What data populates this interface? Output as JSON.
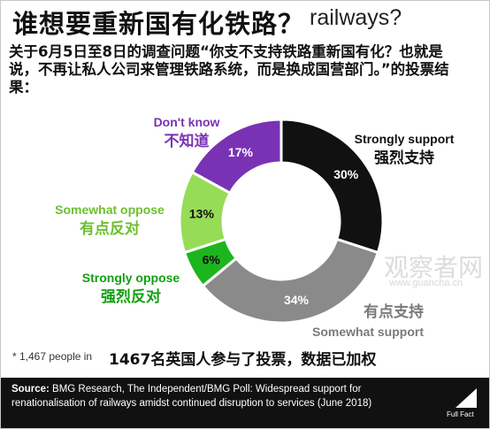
{
  "title_en_partial": "railways?",
  "title_cn": "谁想要重新国有化铁路？",
  "question_cn": "关于6月5日至8日的调查问题“你支不支持铁路重新国有化？也就是说，不再让私人公司来管理铁路系统，而是换成国营部门。”的投票结果：",
  "chart_data": {
    "type": "pie",
    "donut": true,
    "slices": [
      {
        "label": "Strongly support",
        "label_cn": "强烈支持",
        "value": 30,
        "display": "30%",
        "color": "#111111",
        "text_color": "#ffffff",
        "label_color": "#111111"
      },
      {
        "label": "Somewhat support",
        "label_cn": "有点支持",
        "value": 34,
        "display": "34%",
        "color": "#8a8a8a",
        "text_color": "#ffffff",
        "label_color": "#7a7a7a"
      },
      {
        "label": "Strongly oppose",
        "label_cn": "强烈反对",
        "value": 6,
        "display": "6%",
        "color": "#1db51d",
        "text_color": "#111111",
        "label_color": "#11a011"
      },
      {
        "label": "Somewhat oppose",
        "label_cn": "有点反对",
        "value": 13,
        "display": "13%",
        "color": "#97dc57",
        "text_color": "#111111",
        "label_color": "#6cbf2f"
      },
      {
        "label": "Don't know",
        "label_cn": "不知道",
        "value": 17,
        "display": "17%",
        "color": "#7a32b5",
        "text_color": "#ffffff",
        "label_color": "#7a32b5"
      }
    ]
  },
  "footnote_en": "* 1,467 people in",
  "footnote_cn": "1467名英国人参与了投票，数据已加权",
  "source": {
    "prefix": "Source:",
    "text": "BMG Research, The Independent/BMG Poll: Widespread support for renationalisation of railways amidst continued disruption to services (June 2018)"
  },
  "watermark": {
    "text": "观察者网",
    "url": "www.guancha.cn"
  },
  "logo_text": "Full Fact"
}
